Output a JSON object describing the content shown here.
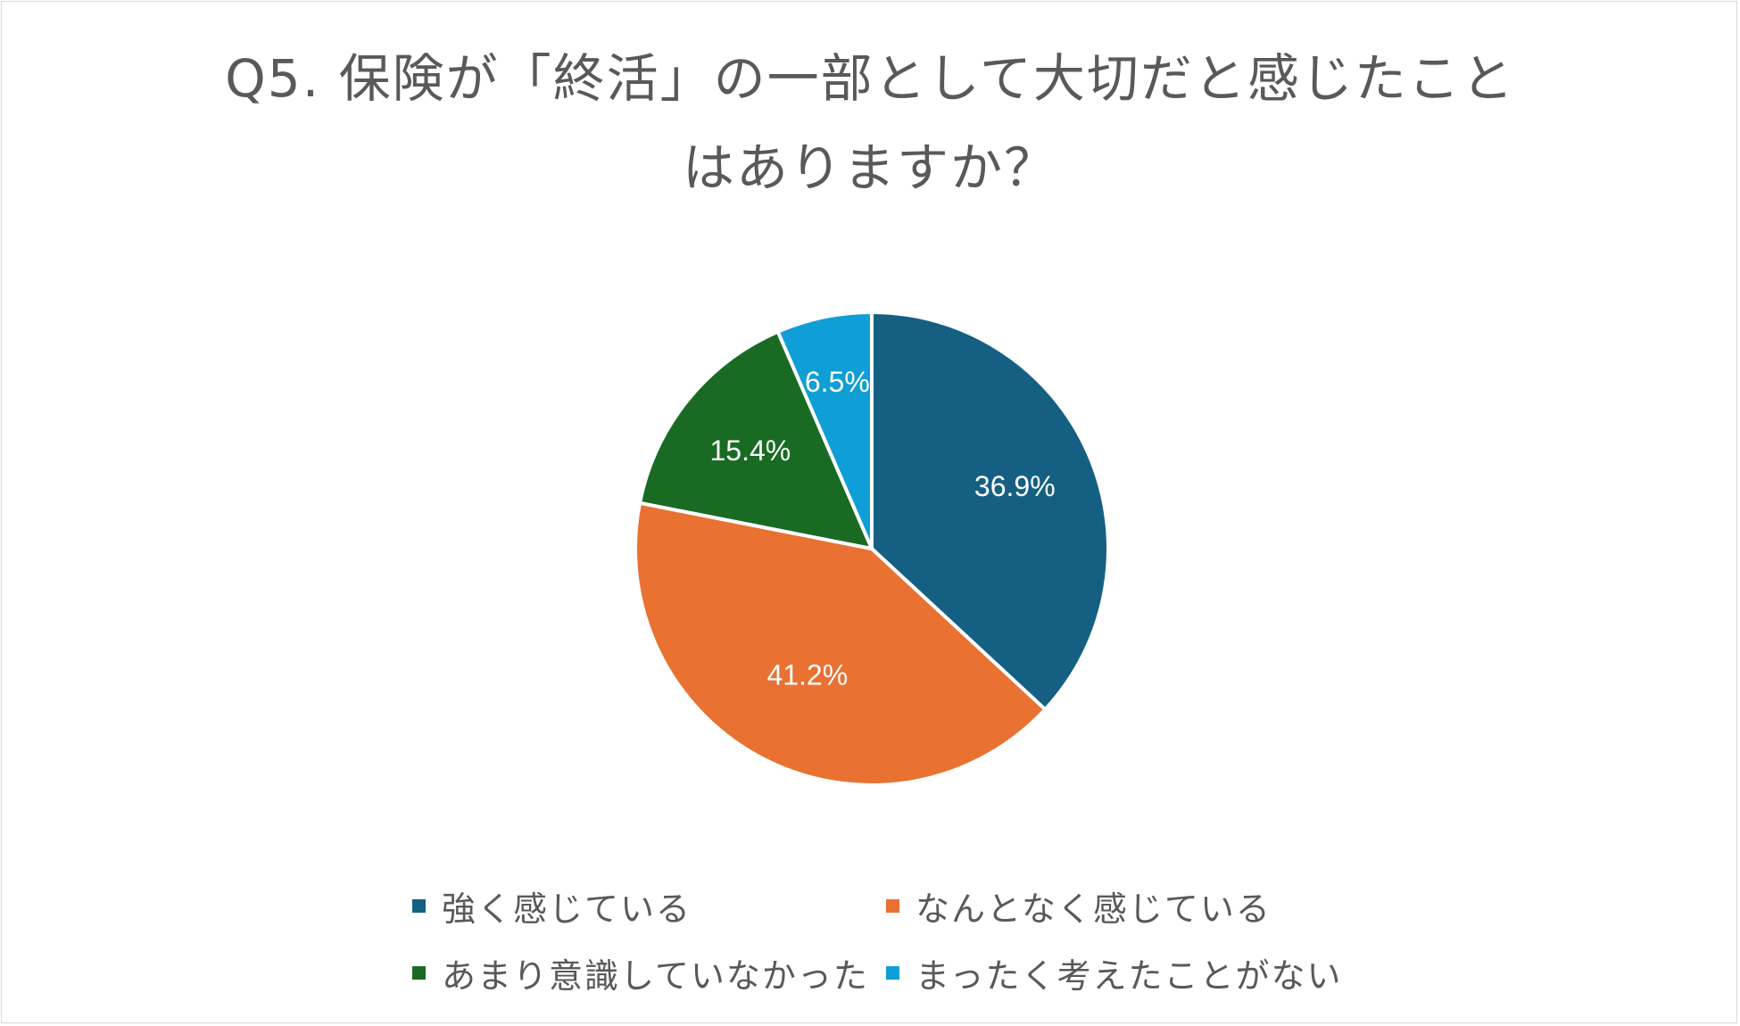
{
  "chart_data": {
    "type": "pie",
    "title_lines": [
      "Q5. 保険が「終活」の一部として大切だと感じたこと",
      "はありますか？"
    ],
    "categories": [
      "強く感じている",
      "なんとなく感じている",
      "あまり意識していなかった",
      "まったく考えたことがない"
    ],
    "values": [
      36.9,
      41.2,
      15.4,
      6.5
    ],
    "data_labels": [
      "36.9%",
      "41.2%",
      "15.4%",
      "6.5%"
    ],
    "colors": [
      "#156082",
      "#e97132",
      "#196b24",
      "#0f9ed5"
    ],
    "legend_position": "bottom",
    "start_angle": "12 o'clock",
    "direction": "clockwise"
  }
}
